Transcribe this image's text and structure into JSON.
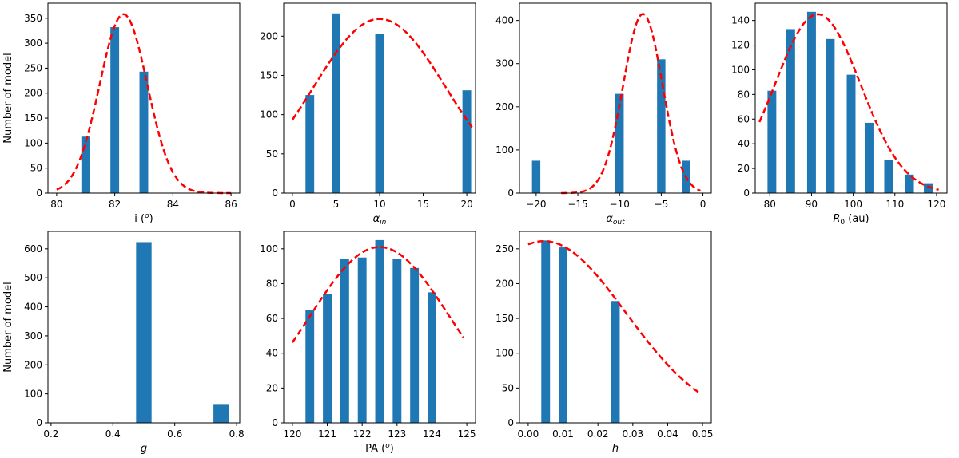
{
  "figure": {
    "bar_color": "#1f77b4",
    "fit_color": "#ff0000",
    "axes_color": "#000000"
  },
  "chart_data": [
    {
      "type": "bar",
      "name": "panel-inclination",
      "xlabel": "i (",
      "xlabel_sup": "o",
      "xlabel_tail": ")",
      "ylabel": "Number of model",
      "xlim": [
        79.7,
        86.3
      ],
      "ylim": [
        0,
        380
      ],
      "xticks": [
        80,
        82,
        84,
        86
      ],
      "yticks": [
        0,
        50,
        100,
        150,
        200,
        250,
        300,
        350
      ],
      "bar_width": 0.3,
      "bars": [
        {
          "x": 81.0,
          "y": 113
        },
        {
          "x": 82.0,
          "y": 332
        },
        {
          "x": 83.0,
          "y": 243
        }
      ],
      "fit": {
        "mu": 82.3,
        "sigma": 0.82,
        "amp": 358,
        "xrange": [
          80.0,
          86.0
        ]
      }
    },
    {
      "type": "bar",
      "name": "panel-alpha-in",
      "xlabel": "α",
      "xlabel_sub": "in",
      "ylabel": "",
      "xlim": [
        -1.0,
        21.0
      ],
      "ylim": [
        0,
        242
      ],
      "xticks": [
        0,
        5,
        10,
        15,
        20
      ],
      "yticks": [
        0,
        50,
        100,
        150,
        200
      ],
      "bar_width": 1.0,
      "bars": [
        {
          "x": 2.0,
          "y": 125
        },
        {
          "x": 5.0,
          "y": 229
        },
        {
          "x": 10.0,
          "y": 203
        },
        {
          "x": 20.0,
          "y": 131
        }
      ],
      "fit": {
        "mu": 10.0,
        "sigma": 7.6,
        "amp": 222,
        "xrange": [
          0.0,
          20.6
        ]
      }
    },
    {
      "type": "bar",
      "name": "panel-alpha-out",
      "xlabel": "α",
      "xlabel_sub": "out",
      "ylabel": "",
      "xlim": [
        -22.0,
        1.0
      ],
      "ylim": [
        0,
        440
      ],
      "xticks": [
        -20,
        -15,
        -10,
        -5,
        0
      ],
      "yticks": [
        0,
        100,
        200,
        300,
        400
      ],
      "bar_width": 1.0,
      "bars": [
        {
          "x": -20.0,
          "y": 75
        },
        {
          "x": -10.0,
          "y": 230
        },
        {
          "x": -5.0,
          "y": 310
        },
        {
          "x": -2.0,
          "y": 75
        }
      ],
      "fit": {
        "mu": -7.2,
        "sigma": 2.35,
        "amp": 415,
        "xrange": [
          -17.0,
          -0.3
        ]
      }
    },
    {
      "type": "bar",
      "name": "panel-r0",
      "xlabel": "R",
      "xlabel_sub": "0",
      "xlabel_tail": " (au)",
      "ylabel": "",
      "xlim": [
        76.5,
        122.5
      ],
      "ylim": [
        0,
        154
      ],
      "xticks": [
        80,
        90,
        100,
        110,
        120
      ],
      "yticks": [
        0,
        20,
        40,
        60,
        80,
        100,
        120,
        140
      ],
      "bar_width": 2.1,
      "bars": [
        {
          "x": 80.5,
          "y": 83
        },
        {
          "x": 85.0,
          "y": 133
        },
        {
          "x": 90.0,
          "y": 147
        },
        {
          "x": 94.5,
          "y": 125
        },
        {
          "x": 99.5,
          "y": 96
        },
        {
          "x": 104.0,
          "y": 57
        },
        {
          "x": 108.5,
          "y": 27
        },
        {
          "x": 113.5,
          "y": 15
        },
        {
          "x": 118.0,
          "y": 8
        }
      ],
      "fit": {
        "mu": 91.5,
        "sigma": 10.3,
        "amp": 145,
        "xrange": [
          77.5,
          120.5
        ]
      }
    },
    {
      "type": "bar",
      "name": "panel-g",
      "xlabel": "g",
      "ylabel": "Number of model",
      "xlim": [
        0.19,
        0.81
      ],
      "ylim": [
        0,
        660
      ],
      "xticks": [
        0.2,
        0.4,
        0.6,
        0.8
      ],
      "yticks": [
        0,
        100,
        200,
        300,
        400,
        500,
        600
      ],
      "bar_width": 0.05,
      "bars": [
        {
          "x": 0.5,
          "y": 623
        },
        {
          "x": 0.75,
          "y": 65
        }
      ],
      "fit": null
    },
    {
      "type": "bar",
      "name": "panel-pa",
      "xlabel": "PA (",
      "xlabel_sup": "o",
      "xlabel_tail": ")",
      "ylabel": "",
      "xlim": [
        119.75,
        125.25
      ],
      "ylim": [
        0,
        110
      ],
      "xticks": [
        120,
        121,
        122,
        123,
        124,
        125
      ],
      "yticks": [
        0,
        20,
        40,
        60,
        80,
        100
      ],
      "bar_width": 0.25,
      "bars": [
        {
          "x": 120.5,
          "y": 65
        },
        {
          "x": 121.0,
          "y": 74
        },
        {
          "x": 121.5,
          "y": 94
        },
        {
          "x": 122.0,
          "y": 95
        },
        {
          "x": 122.5,
          "y": 105
        },
        {
          "x": 123.0,
          "y": 94
        },
        {
          "x": 123.5,
          "y": 89
        },
        {
          "x": 124.0,
          "y": 75
        }
      ],
      "fit": {
        "mu": 122.5,
        "sigma": 2.0,
        "amp": 101,
        "xrange": [
          120.0,
          124.9
        ]
      }
    },
    {
      "type": "bar",
      "name": "panel-h",
      "xlabel": "h",
      "ylabel": "",
      "xlim": [
        -0.0025,
        0.0525
      ],
      "ylim": [
        0,
        275
      ],
      "xticks": [
        0.0,
        0.01,
        0.02,
        0.03,
        0.04,
        0.05
      ],
      "xtick_labels": [
        "0.00",
        "0.01",
        "0.02",
        "0.03",
        "0.04",
        "0.05"
      ],
      "yticks": [
        0,
        50,
        100,
        150,
        200,
        250
      ],
      "bar_width": 0.0025,
      "bars": [
        {
          "x": 0.005,
          "y": 262
        },
        {
          "x": 0.01,
          "y": 252
        },
        {
          "x": 0.025,
          "y": 175
        }
      ],
      "fit": {
        "mu": 0.0045,
        "sigma": 0.0235,
        "amp": 261,
        "xrange": [
          0.0,
          0.049
        ]
      }
    }
  ]
}
